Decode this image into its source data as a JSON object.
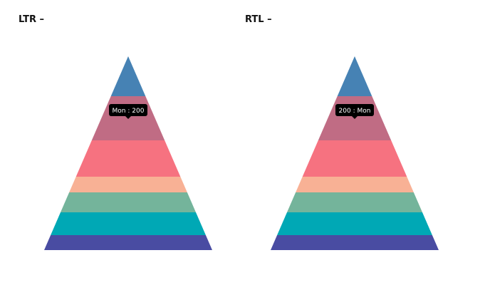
{
  "chart_data": [
    {
      "type": "pyramid",
      "title": "LTR –",
      "segment_colors": [
        "#4682B4",
        "#C06C84",
        "#F67280",
        "#F8B195",
        "#74B49B",
        "#00A8B5",
        "#494CA2"
      ],
      "tooltip": {
        "text": "Mon : 200",
        "segment": 1
      }
    },
    {
      "type": "pyramid",
      "title": "RTL –",
      "segment_colors": [
        "#4682B4",
        "#C06C84",
        "#F67280",
        "#F8B195",
        "#74B49B",
        "#00A8B5",
        "#494CA2"
      ],
      "tooltip": {
        "text": "200 : Mon",
        "segment": 1
      }
    }
  ]
}
